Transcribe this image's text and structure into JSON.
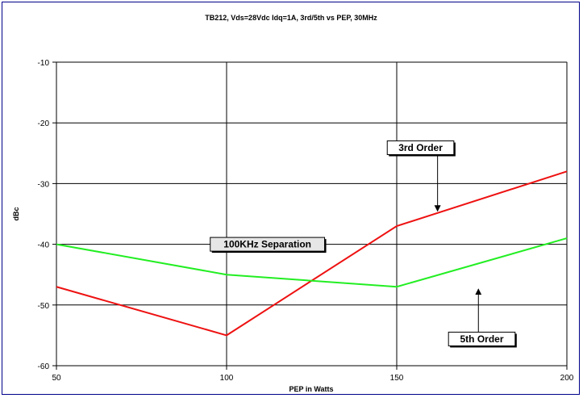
{
  "chart_data": {
    "type": "line",
    "title": "TB212, Vds=28Vdc Idq=1A, 3rd/5th vs PEP, 30MHz",
    "xlabel": "PEP in Watts",
    "ylabel": "dBc",
    "xlim": [
      50,
      200
    ],
    "ylim": [
      -60,
      -10
    ],
    "x_ticks": [
      50,
      100,
      150,
      200
    ],
    "y_ticks": [
      -10,
      -20,
      -30,
      -40,
      -50,
      -60
    ],
    "grid": true,
    "x": [
      50,
      100,
      150,
      200
    ],
    "series": [
      {
        "name": "3rd Order",
        "color": "#ee1111",
        "values": [
          -47,
          -55,
          -37,
          -28
        ]
      },
      {
        "name": "5th Order",
        "color": "#22ee22",
        "values": [
          -40,
          -45,
          -47,
          -39
        ]
      }
    ],
    "annotations": [
      {
        "text": "3rd Order",
        "x": 157,
        "y": -24.1,
        "arrow_to_x": 162,
        "arrow_to_y": -34.5
      },
      {
        "text": "100KHz Separation",
        "x": 112,
        "y": -40,
        "arrow_to_x": null,
        "arrow_to_y": null
      },
      {
        "text": "5th Order",
        "x": 175,
        "y": -55.6,
        "arrow_to_x": 174,
        "arrow_to_y": -47.4
      }
    ]
  }
}
